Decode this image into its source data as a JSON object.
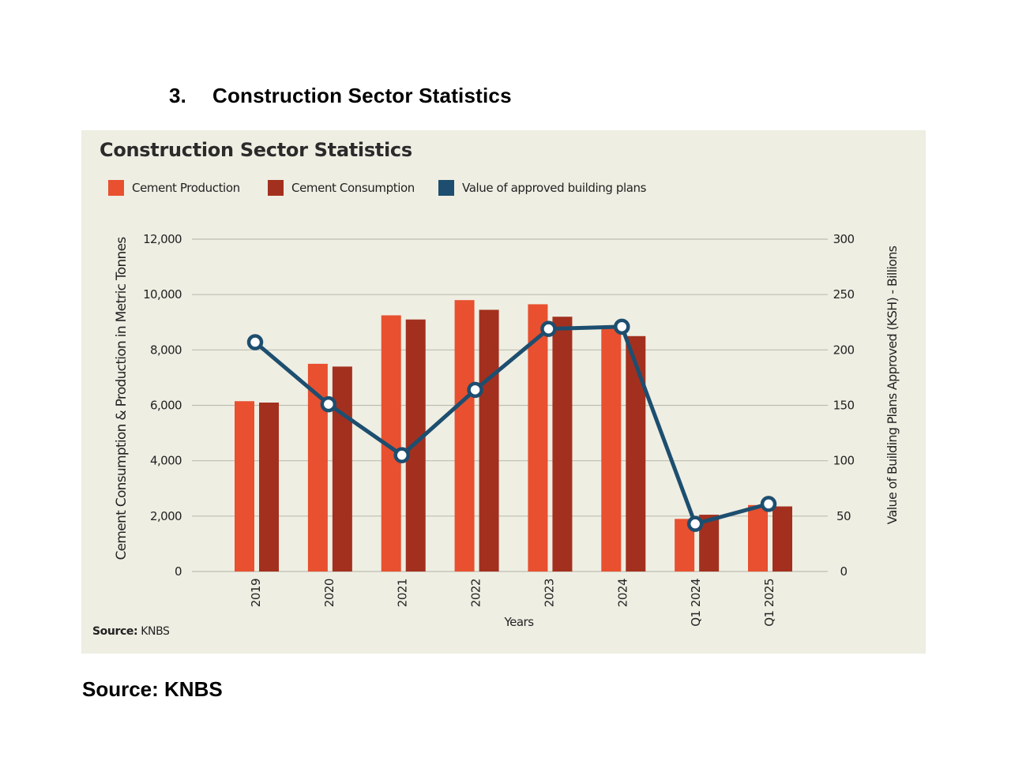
{
  "section": {
    "number": "3.",
    "title": "Construction Sector Statistics"
  },
  "panel_source": {
    "label": "Source:",
    "value": "KNBS"
  },
  "document_source": "Source: KNBS",
  "colors": {
    "panel_bg": "#efeee3",
    "cement_production": "#e8502f",
    "cement_consumption": "#a3301e",
    "building_plans": "#1d4e6f",
    "grid": "#bdbdb2"
  },
  "chart_data": {
    "type": "bar",
    "title": "Construction Sector Statistics",
    "categories": [
      "2019",
      "2020",
      "2021",
      "2022",
      "2023",
      "2024",
      "Q1 2024",
      "Q1 2025"
    ],
    "xlabel": "Years",
    "ylabel": "Cement Consumption & Production in Metric Tonnes",
    "y2label": "Value of Building Plans Approved (KSH) - Billions",
    "ylim": [
      0,
      12000
    ],
    "y2lim": [
      0,
      300
    ],
    "yticks": [
      "0",
      "2,000",
      "4,000",
      "6,000",
      "8,000",
      "10,000",
      "12,000"
    ],
    "y2ticks": [
      "0",
      "50",
      "100",
      "150",
      "200",
      "250",
      "300"
    ],
    "grid": true,
    "legend_position": "top-left",
    "series": [
      {
        "name": "Cement Production",
        "type": "bar",
        "axis": "left",
        "values": [
          6150,
          7500,
          9250,
          9800,
          9650,
          8850,
          1900,
          2400
        ]
      },
      {
        "name": "Cement Consumption",
        "type": "bar",
        "axis": "left",
        "values": [
          6100,
          7400,
          9100,
          9450,
          9200,
          8500,
          2050,
          2350
        ]
      },
      {
        "name": "Value of approved building plans",
        "type": "line",
        "axis": "right",
        "values": [
          207,
          151,
          105,
          164,
          219,
          221,
          43,
          61
        ]
      }
    ]
  }
}
